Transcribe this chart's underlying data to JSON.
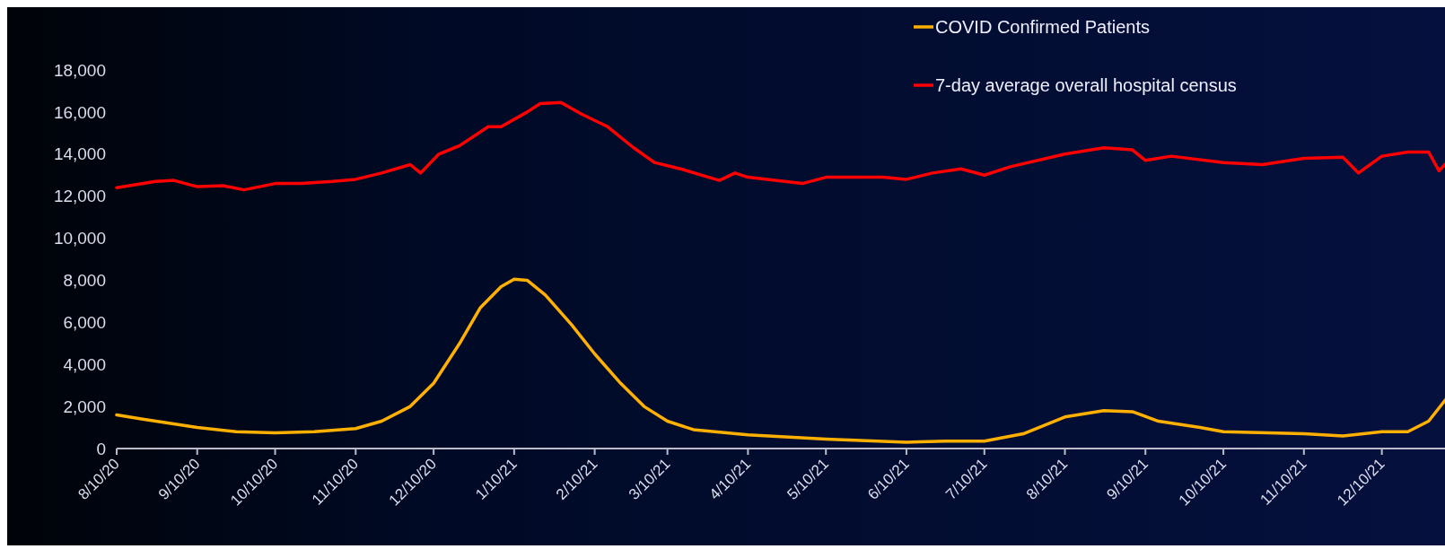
{
  "chart_data": {
    "type": "line",
    "xlim": [
      "2020-08-10",
      "2022-01-04"
    ],
    "xticks": [
      {
        "value": "2020-08-10",
        "label": "8/10/20"
      },
      {
        "value": "2020-09-10",
        "label": "9/10/20"
      },
      {
        "value": "2020-10-10",
        "label": "10/10/20"
      },
      {
        "value": "2020-11-10",
        "label": "11/10/20"
      },
      {
        "value": "2020-12-10",
        "label": "12/10/20"
      },
      {
        "value": "2021-01-10",
        "label": "1/10/21"
      },
      {
        "value": "2021-02-10",
        "label": "2/10/21"
      },
      {
        "value": "2021-03-10",
        "label": "3/10/21"
      },
      {
        "value": "2021-04-10",
        "label": "4/10/21"
      },
      {
        "value": "2021-05-10",
        "label": "5/10/21"
      },
      {
        "value": "2021-06-10",
        "label": "6/10/21"
      },
      {
        "value": "2021-07-10",
        "label": "7/10/21"
      },
      {
        "value": "2021-08-10",
        "label": "8/10/21"
      },
      {
        "value": "2021-09-10",
        "label": "9/10/21"
      },
      {
        "value": "2021-10-10",
        "label": "10/10/21"
      },
      {
        "value": "2021-11-10",
        "label": "11/10/21"
      },
      {
        "value": "2021-12-10",
        "label": "12/10/21"
      }
    ],
    "ylim": [
      0,
      18000
    ],
    "yticks": [
      {
        "value": 0,
        "label": "0"
      },
      {
        "value": 2000,
        "label": "2,000"
      },
      {
        "value": 4000,
        "label": "4,000"
      },
      {
        "value": 6000,
        "label": "6,000"
      },
      {
        "value": 8000,
        "label": "8,000"
      },
      {
        "value": 10000,
        "label": "10,000"
      },
      {
        "value": 12000,
        "label": "12,000"
      },
      {
        "value": 14000,
        "label": "14,000"
      },
      {
        "value": 16000,
        "label": "16,000"
      },
      {
        "value": 18000,
        "label": "18,000"
      }
    ],
    "grid": false,
    "legend": "top right",
    "marker": "none",
    "line_style": "solid",
    "series": [
      {
        "name": "COVID Confirmed Patients",
        "color": "#ffb000",
        "x": [
          "2020-08-10",
          "2020-08-20",
          "2020-09-10",
          "2020-09-25",
          "2020-10-10",
          "2020-10-25",
          "2020-11-10",
          "2020-11-20",
          "2020-12-01",
          "2020-12-10",
          "2020-12-20",
          "2020-12-28",
          "2021-01-01",
          "2021-01-05",
          "2021-01-10",
          "2021-01-15",
          "2021-01-22",
          "2021-02-01",
          "2021-02-10",
          "2021-02-20",
          "2021-03-01",
          "2021-03-10",
          "2021-03-20",
          "2021-04-10",
          "2021-05-10",
          "2021-06-10",
          "2021-06-25",
          "2021-07-10",
          "2021-07-25",
          "2021-08-10",
          "2021-08-25",
          "2021-09-05",
          "2021-09-15",
          "2021-10-01",
          "2021-10-10",
          "2021-11-10",
          "2021-11-25",
          "2021-12-10",
          "2021-12-20",
          "2021-12-28",
          "2022-01-04"
        ],
        "values": [
          1600,
          1400,
          1000,
          800,
          750,
          800,
          950,
          1300,
          2000,
          3100,
          5000,
          6700,
          7200,
          7700,
          8050,
          8000,
          7300,
          5900,
          4500,
          3100,
          2000,
          1300,
          900,
          650,
          450,
          300,
          350,
          350,
          700,
          1500,
          1800,
          1750,
          1300,
          1000,
          800,
          700,
          600,
          800,
          800,
          1300,
          2400
        ]
      },
      {
        "name": "7-day average overall hospital census",
        "color": "#ff0000",
        "x": [
          "2020-08-10",
          "2020-08-25",
          "2020-09-01",
          "2020-09-10",
          "2020-09-20",
          "2020-09-28",
          "2020-10-10",
          "2020-10-20",
          "2020-11-01",
          "2020-11-10",
          "2020-11-20",
          "2020-12-01",
          "2020-12-05",
          "2020-12-12",
          "2020-12-20",
          "2020-12-31",
          "2021-01-05",
          "2021-01-15",
          "2021-01-20",
          "2021-01-28",
          "2021-02-05",
          "2021-02-15",
          "2021-02-25",
          "2021-03-05",
          "2021-03-15",
          "2021-03-30",
          "2021-04-05",
          "2021-04-10",
          "2021-05-01",
          "2021-05-10",
          "2021-06-01",
          "2021-06-10",
          "2021-06-20",
          "2021-07-01",
          "2021-07-10",
          "2021-07-20",
          "2021-08-10",
          "2021-08-25",
          "2021-09-05",
          "2021-09-10",
          "2021-09-20",
          "2021-10-10",
          "2021-10-25",
          "2021-11-10",
          "2021-11-25",
          "2021-12-01",
          "2021-12-10",
          "2021-12-20",
          "2021-12-28",
          "2022-01-01",
          "2022-01-04"
        ],
        "values": [
          12400,
          12700,
          12750,
          12450,
          12500,
          12300,
          12600,
          12600,
          12700,
          12800,
          13100,
          13500,
          13100,
          14000,
          14400,
          15300,
          15300,
          16000,
          16400,
          16450,
          15900,
          15300,
          14300,
          13600,
          13300,
          12750,
          13100,
          12900,
          12600,
          12900,
          12900,
          12800,
          13100,
          13300,
          13000,
          13400,
          14000,
          14300,
          14200,
          13700,
          13900,
          13600,
          13500,
          13800,
          13850,
          13100,
          13900,
          14100,
          14100,
          13200,
          13600
        ]
      }
    ]
  }
}
